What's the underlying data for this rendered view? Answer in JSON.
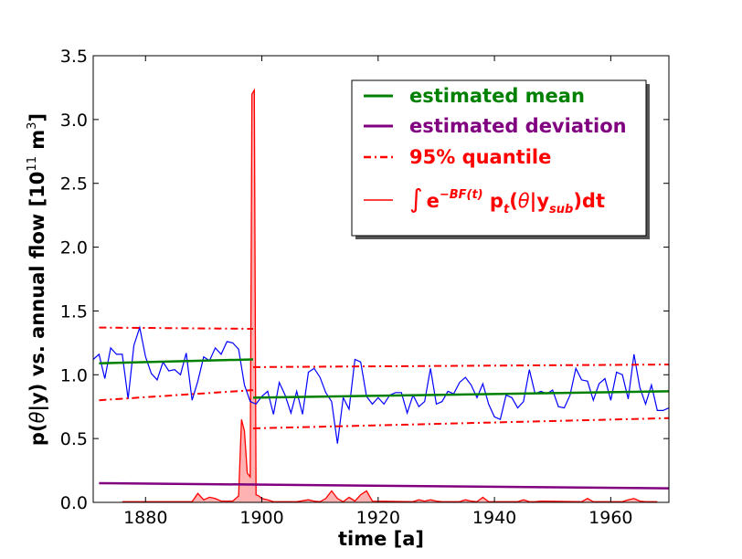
{
  "chart_data": {
    "type": "line",
    "xlabel": "time [a]",
    "ylabel_parts": {
      "pre": "p(",
      "theta": "θ",
      "post": "|y) vs. annual flow [10",
      "exp": "11",
      "unit": " m",
      "unit_exp": "3",
      "close": "]"
    },
    "xlim": [
      1871,
      1970
    ],
    "ylim": [
      0,
      3.5
    ],
    "xticks": [
      1880,
      1900,
      1920,
      1940,
      1960
    ],
    "xtick_labels": [
      "1880",
      "1900",
      "1920",
      "1940",
      "1960"
    ],
    "yticks": [
      0.0,
      0.5,
      1.0,
      1.5,
      2.0,
      2.5,
      3.0,
      3.5
    ],
    "ytick_labels": [
      "0.0",
      "0.5",
      "1.0",
      "1.5",
      "2.0",
      "2.5",
      "3.0",
      "3.5"
    ],
    "colors": {
      "flow": "#0000ff",
      "mean": "#008000",
      "deviation": "#800080",
      "quantile": "#ff0000",
      "posterior_line": "#ff0000",
      "posterior_fill": "#ffaaaa"
    },
    "legend": {
      "mean": "estimated mean",
      "deviation": "estimated deviation",
      "quantile": "95% quantile",
      "posterior_int": "∫",
      "posterior_e": "e",
      "posterior_exp": "−BF(t)",
      "posterior_p": " p",
      "posterior_t": "t",
      "posterior_open": "(",
      "posterior_theta": "θ",
      "posterior_given": "|y",
      "posterior_sub": "sub",
      "posterior_close": ")dt"
    },
    "annual_flow": {
      "x": [
        1871,
        1872,
        1873,
        1874,
        1875,
        1876,
        1877,
        1878,
        1879,
        1880,
        1881,
        1882,
        1883,
        1884,
        1885,
        1886,
        1887,
        1888,
        1889,
        1890,
        1891,
        1892,
        1893,
        1894,
        1895,
        1896,
        1897,
        1898,
        1899,
        1900,
        1901,
        1902,
        1903,
        1904,
        1905,
        1906,
        1907,
        1908,
        1909,
        1910,
        1911,
        1912,
        1913,
        1914,
        1915,
        1916,
        1917,
        1918,
        1919,
        1920,
        1921,
        1922,
        1923,
        1924,
        1925,
        1926,
        1927,
        1928,
        1929,
        1930,
        1931,
        1932,
        1933,
        1934,
        1935,
        1936,
        1937,
        1938,
        1939,
        1940,
        1941,
        1942,
        1943,
        1944,
        1945,
        1946,
        1947,
        1948,
        1949,
        1950,
        1951,
        1952,
        1953,
        1954,
        1955,
        1956,
        1957,
        1958,
        1959,
        1960,
        1961,
        1962,
        1963,
        1964,
        1965,
        1966,
        1967,
        1968,
        1969,
        1970
      ],
      "y": [
        1.12,
        1.16,
        0.97,
        1.21,
        1.16,
        1.16,
        0.81,
        1.23,
        1.37,
        1.14,
        1.01,
        0.96,
        1.1,
        1.03,
        1.04,
        1.0,
        1.17,
        0.8,
        0.95,
        1.14,
        1.11,
        1.21,
        1.16,
        1.26,
        1.25,
        1.2,
        0.92,
        0.79,
        0.77,
        0.83,
        0.87,
        0.69,
        0.94,
        0.84,
        0.7,
        0.87,
        0.69,
        1.02,
        1.05,
        0.98,
        0.86,
        0.79,
        0.46,
        0.82,
        0.73,
        1.12,
        1.1,
        0.83,
        0.77,
        0.82,
        0.77,
        0.84,
        0.86,
        0.86,
        0.7,
        0.84,
        0.75,
        0.79,
        1.05,
        0.77,
        0.79,
        0.87,
        0.85,
        0.94,
        0.98,
        0.92,
        0.82,
        0.93,
        0.77,
        0.67,
        0.65,
        0.84,
        0.82,
        0.74,
        0.79,
        1.04,
        0.85,
        0.87,
        0.85,
        0.88,
        0.75,
        0.74,
        0.84,
        1.05,
        0.96,
        0.95,
        0.8,
        0.93,
        0.97,
        0.8,
        1.02,
        1.0,
        0.81,
        1.16,
        0.9,
        0.77,
        0.92,
        0.72,
        0.72,
        0.74
      ]
    },
    "estimated_mean": [
      {
        "x": [
          1872,
          1898.5
        ],
        "y": [
          1.09,
          1.12
        ]
      },
      {
        "x": [
          1898.5,
          1970
        ],
        "y": [
          0.82,
          0.87
        ]
      }
    ],
    "quantile_upper": [
      {
        "x": [
          1872,
          1898.5
        ],
        "y": [
          1.37,
          1.36
        ]
      },
      {
        "x": [
          1898.5,
          1970
        ],
        "y": [
          1.06,
          1.08
        ]
      }
    ],
    "quantile_lower": [
      {
        "x": [
          1872,
          1898.5
        ],
        "y": [
          0.8,
          0.88
        ]
      },
      {
        "x": [
          1898.5,
          1970
        ],
        "y": [
          0.58,
          0.66
        ]
      }
    ],
    "estimated_deviation": {
      "x": [
        1872,
        1970
      ],
      "y": [
        0.15,
        0.11
      ]
    },
    "posterior_density": {
      "x": [
        1876,
        1888,
        1889,
        1890,
        1891,
        1892,
        1893,
        1894,
        1895,
        1896,
        1896.5,
        1897,
        1897.5,
        1898,
        1898.3,
        1898.7,
        1899,
        1899.5,
        1900,
        1901,
        1902,
        1906,
        1908,
        1909,
        1910,
        1911,
        1912,
        1913,
        1914,
        1915,
        1916,
        1917,
        1918,
        1919,
        1926,
        1927,
        1928,
        1929,
        1930,
        1931,
        1934,
        1935,
        1936,
        1937,
        1938,
        1939,
        1940,
        1944,
        1945,
        1946,
        1947,
        1948,
        1955,
        1956,
        1957,
        1962,
        1963,
        1964,
        1965,
        1966,
        1968
      ],
      "y": [
        0.005,
        0.005,
        0.07,
        0.02,
        0.04,
        0.03,
        0.01,
        0.01,
        0.01,
        0.05,
        0.65,
        0.56,
        0.23,
        0.2,
        3.2,
        3.23,
        0.06,
        0.05,
        0.03,
        0.02,
        0.005,
        0.005,
        0.02,
        0.01,
        0.005,
        0.03,
        0.09,
        0.03,
        0.005,
        0.04,
        0.01,
        0.06,
        0.09,
        0.01,
        0.005,
        0.02,
        0.01,
        0.02,
        0.01,
        0.005,
        0.005,
        0.02,
        0.01,
        0.005,
        0.04,
        0.005,
        0.005,
        0.005,
        0.02,
        0.005,
        0.005,
        0.01,
        0.005,
        0.03,
        0.005,
        0.005,
        0.02,
        0.03,
        0.01,
        0.005,
        0.005
      ]
    }
  }
}
